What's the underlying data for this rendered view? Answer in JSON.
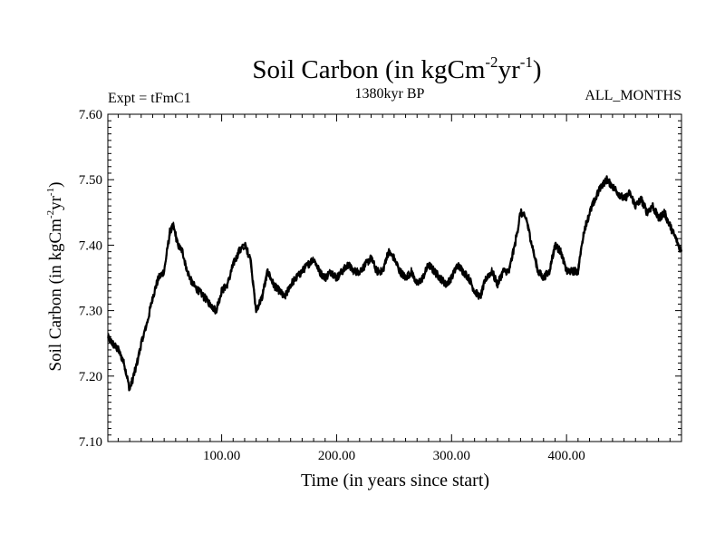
{
  "chart_data": {
    "type": "line",
    "title": "Soil Carbon (in kgCm",
    "title_sup1": "-2",
    "title_mid": "yr",
    "title_sup2": "-1",
    "title_end": ")",
    "subtitle_left": "Expt = tFmC1",
    "subtitle_center": "1380kyr BP",
    "subtitle_right": "ALL_MONTHS",
    "xlabel": "Time (in years since start)",
    "ylabel": "Soil Carbon (in kgCm",
    "ylabel_sup1": "-2",
    "ylabel_mid": "yr",
    "ylabel_sup2": "-1",
    "ylabel_end": ")",
    "xlim": [
      1,
      500
    ],
    "ylim": [
      7.1,
      7.6
    ],
    "x_ticks": [
      100,
      200,
      300,
      400
    ],
    "x_tick_labels": [
      "100.00",
      "200.00",
      "300.00",
      "400.00"
    ],
    "y_ticks": [
      7.1,
      7.2,
      7.3,
      7.4,
      7.5,
      7.6
    ],
    "y_tick_labels": [
      "7.10",
      "7.20",
      "7.30",
      "7.40",
      "7.50",
      "7.60"
    ],
    "line_color": "#000000",
    "series": [
      {
        "name": "Soil Carbon",
        "x": [
          1,
          5,
          10,
          15,
          20,
          25,
          30,
          35,
          40,
          45,
          50,
          55,
          58,
          62,
          66,
          70,
          75,
          80,
          85,
          90,
          95,
          100,
          105,
          110,
          115,
          120,
          125,
          130,
          135,
          140,
          145,
          150,
          155,
          160,
          165,
          170,
          175,
          180,
          185,
          190,
          195,
          200,
          205,
          210,
          215,
          220,
          225,
          230,
          235,
          240,
          245,
          250,
          255,
          260,
          265,
          270,
          275,
          280,
          285,
          290,
          295,
          300,
          305,
          310,
          315,
          320,
          325,
          330,
          335,
          340,
          345,
          350,
          355,
          360,
          365,
          370,
          375,
          380,
          385,
          390,
          395,
          400,
          405,
          410,
          415,
          420,
          425,
          430,
          435,
          440,
          445,
          450,
          455,
          460,
          465,
          470,
          475,
          480,
          485,
          490,
          495,
          500
        ],
        "y": [
          7.26,
          7.25,
          7.24,
          7.22,
          7.18,
          7.21,
          7.25,
          7.28,
          7.32,
          7.35,
          7.36,
          7.42,
          7.43,
          7.4,
          7.39,
          7.36,
          7.34,
          7.33,
          7.32,
          7.31,
          7.3,
          7.33,
          7.34,
          7.37,
          7.39,
          7.4,
          7.38,
          7.3,
          7.32,
          7.36,
          7.34,
          7.33,
          7.32,
          7.34,
          7.35,
          7.36,
          7.37,
          7.38,
          7.36,
          7.35,
          7.36,
          7.35,
          7.36,
          7.37,
          7.36,
          7.36,
          7.37,
          7.38,
          7.36,
          7.36,
          7.39,
          7.38,
          7.36,
          7.35,
          7.36,
          7.34,
          7.35,
          7.37,
          7.36,
          7.35,
          7.34,
          7.35,
          7.37,
          7.36,
          7.35,
          7.33,
          7.32,
          7.35,
          7.36,
          7.34,
          7.36,
          7.36,
          7.4,
          7.45,
          7.44,
          7.4,
          7.36,
          7.35,
          7.36,
          7.4,
          7.39,
          7.36,
          7.36,
          7.36,
          7.42,
          7.45,
          7.47,
          7.49,
          7.5,
          7.49,
          7.48,
          7.47,
          7.48,
          7.46,
          7.47,
          7.45,
          7.46,
          7.44,
          7.45,
          7.43,
          7.41,
          7.39
        ]
      }
    ]
  }
}
